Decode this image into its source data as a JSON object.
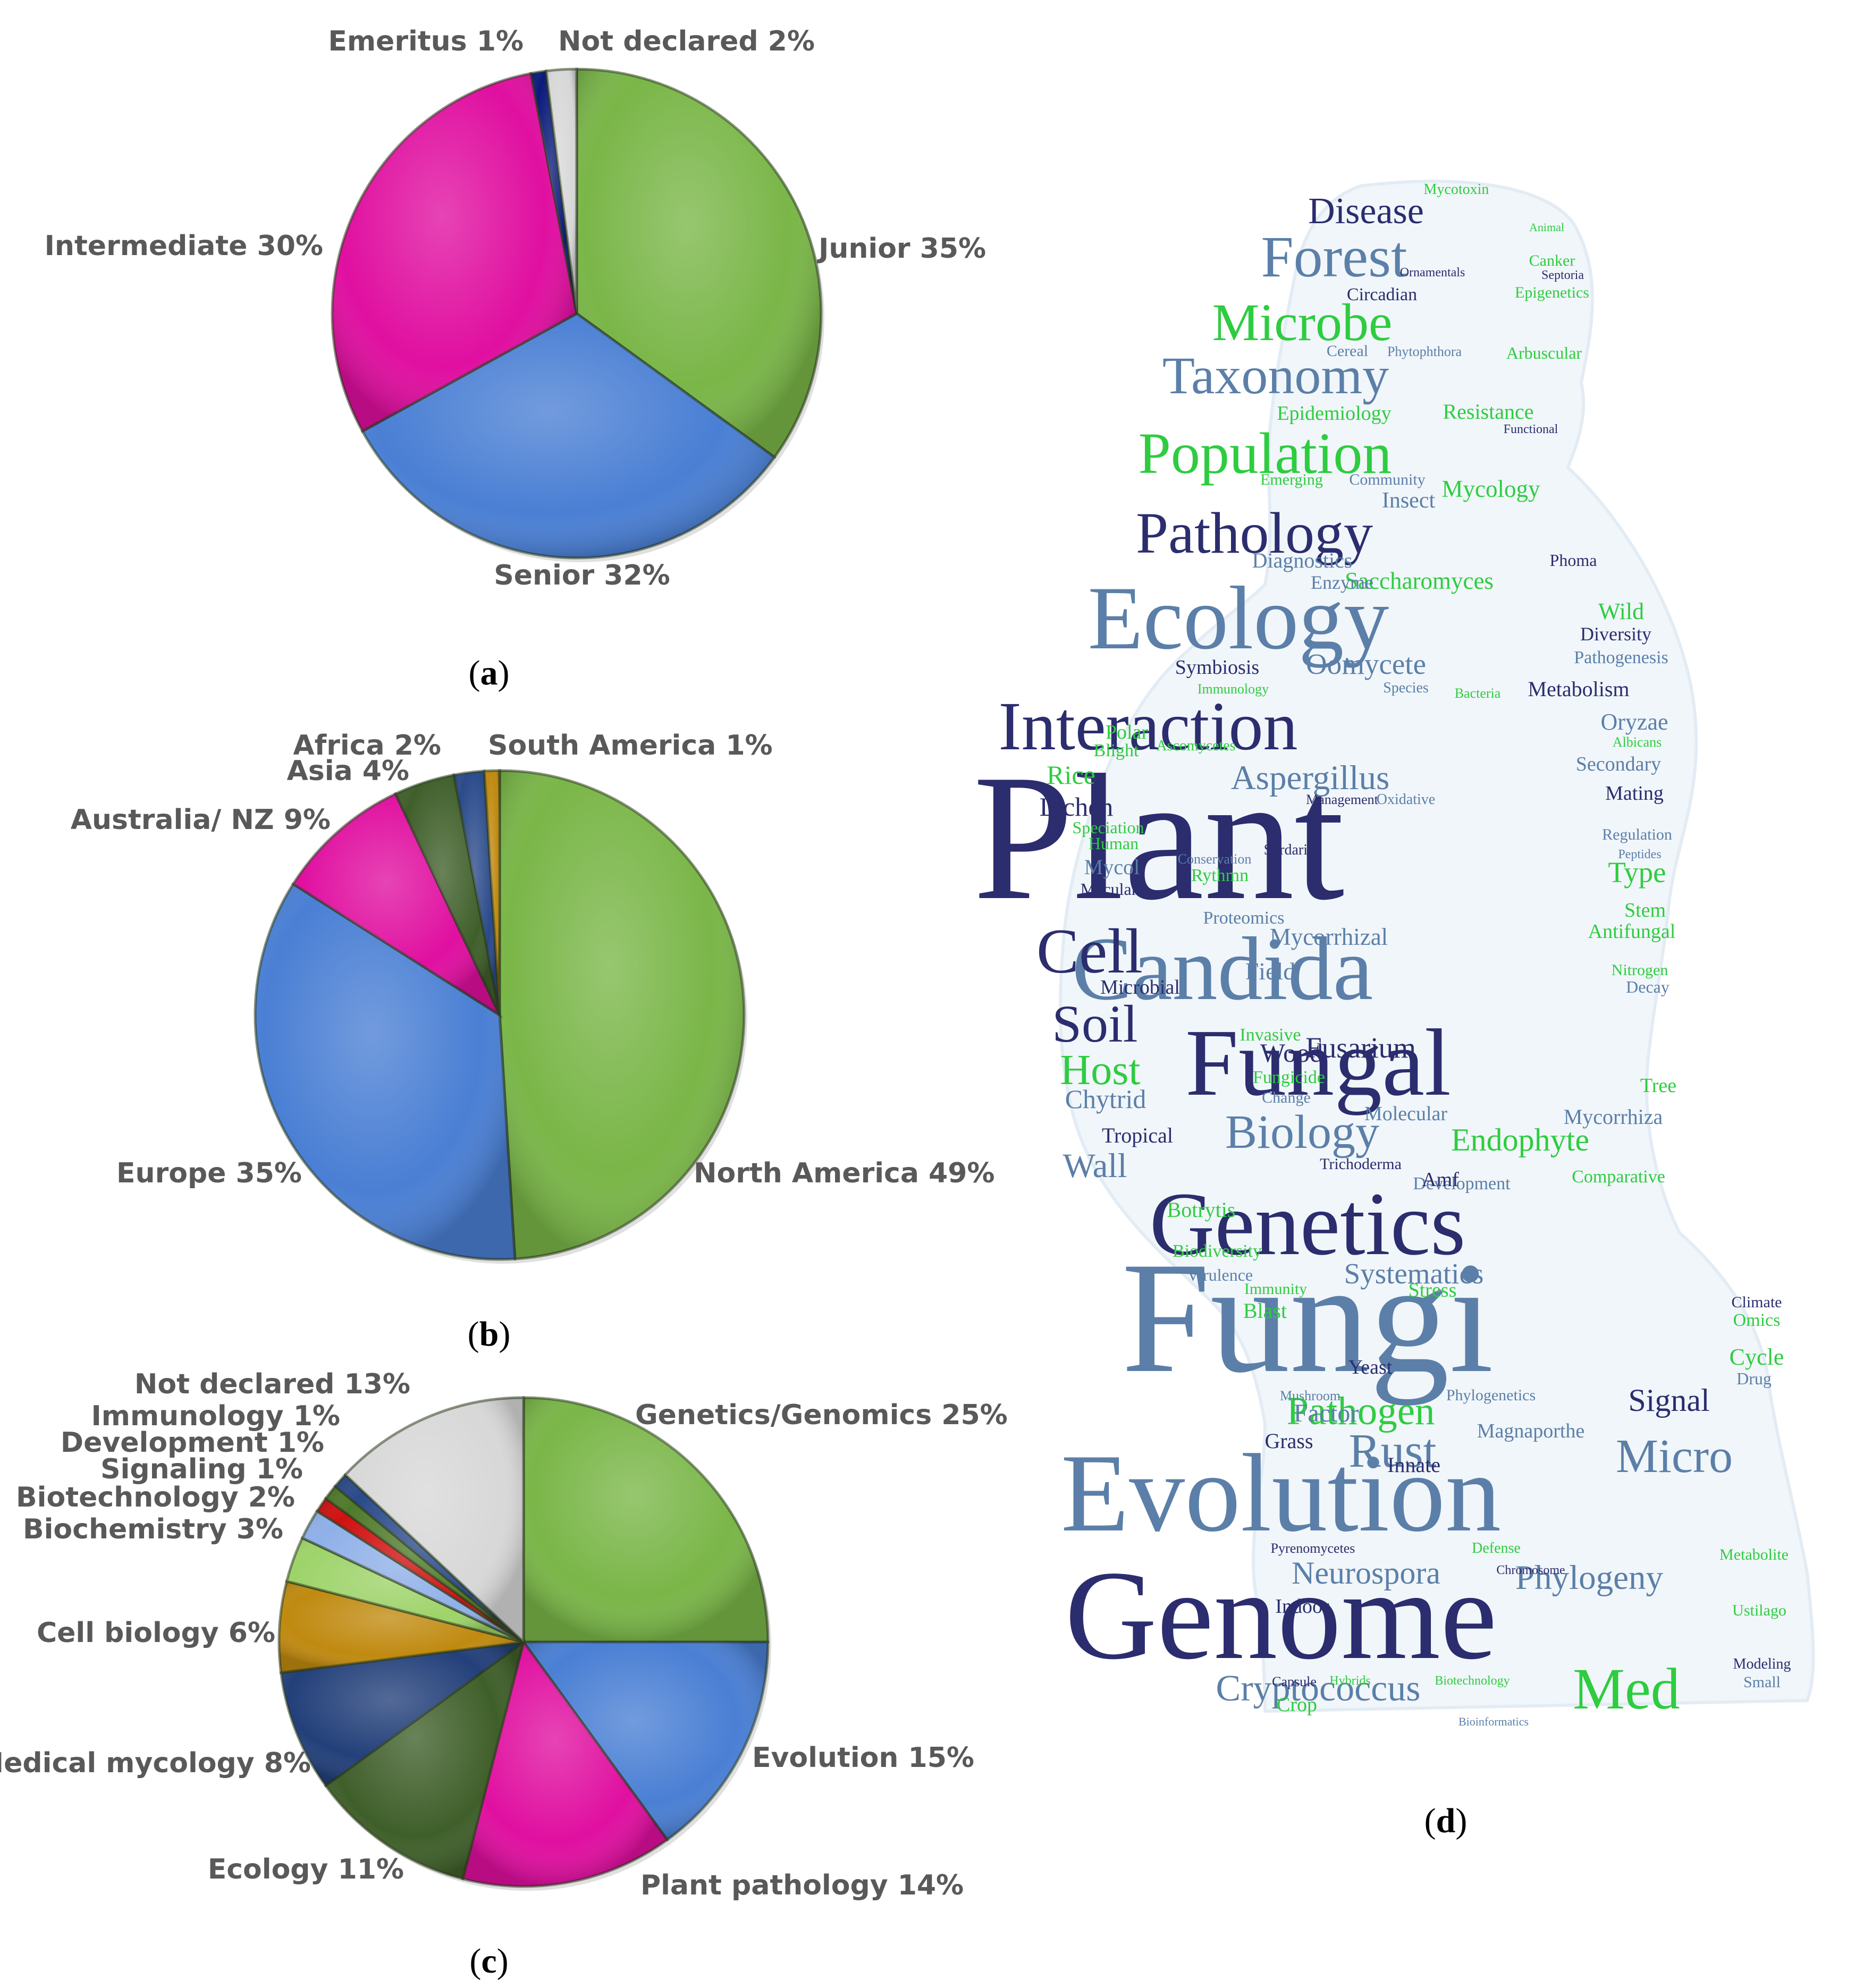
{
  "panels": {
    "a": "a",
    "b": "b",
    "c": "c",
    "d": "d"
  },
  "chart_data": [
    {
      "id": "a",
      "type": "pie",
      "slices": [
        {
          "label": "Junior 35%",
          "value": 35,
          "color": "#7ab648"
        },
        {
          "label": "Senior 32%",
          "value": 32,
          "color": "#4a7fd4"
        },
        {
          "label": "Intermediate 30%",
          "value": 30,
          "color": "#e00fa0"
        },
        {
          "label": "Emeritus 1%",
          "value": 1,
          "color": "#0a1a7a"
        },
        {
          "label": "Not declared 2%",
          "value": 2,
          "color": "#d8d8d8"
        }
      ]
    },
    {
      "id": "b",
      "type": "pie",
      "slices": [
        {
          "label": "North America 49%",
          "value": 49,
          "color": "#7ab648"
        },
        {
          "label": "Europe 35%",
          "value": 35,
          "color": "#4a7fd4"
        },
        {
          "label": "Australia/ NZ 9%",
          "value": 9,
          "color": "#e00fa0"
        },
        {
          "label": "Asia 4%",
          "value": 4,
          "color": "#3f5f2a"
        },
        {
          "label": "Africa 2%",
          "value": 2,
          "color": "#2a4a8a"
        },
        {
          "label": "South America 1%",
          "value": 1,
          "color": "#c08a10"
        }
      ]
    },
    {
      "id": "c",
      "type": "pie",
      "slices": [
        {
          "label": "Genetics/Genomics 25%",
          "value": 25,
          "color": "#7ab648"
        },
        {
          "label": "Evolution 15%",
          "value": 15,
          "color": "#4a7fd4"
        },
        {
          "label": "Plant pathology 14%",
          "value": 14,
          "color": "#e00fa0"
        },
        {
          "label": "Ecology 11%",
          "value": 11,
          "color": "#3f5f2a"
        },
        {
          "label": "Medical mycology 8%",
          "value": 8,
          "color": "#23407a"
        },
        {
          "label": "Cell biology 6%",
          "value": 6,
          "color": "#c08a10"
        },
        {
          "label": "Biochemistry 3%",
          "value": 3,
          "color": "#9ed36a"
        },
        {
          "label": "Biotechnology 2%",
          "value": 2,
          "color": "#8fb0e8"
        },
        {
          "label": "Signaling 1%",
          "value": 1,
          "color": "#d01010"
        },
        {
          "label": "Development 1%",
          "value": 1,
          "color": "#4f7a2a"
        },
        {
          "label": "Immunology 1%",
          "value": 1,
          "color": "#2a4a8a"
        },
        {
          "label": "Not declared 13%",
          "value": 13,
          "color": "#d8d8d8"
        }
      ]
    }
  ],
  "word_cloud": {
    "colors": {
      "dark": "#2b2d6e",
      "mid": "#5b7fa8",
      "green": "#2ecc40"
    },
    "words": [
      "Plant",
      "Fungi",
      "Genome",
      "Evolution",
      "Fungal",
      "Candida",
      "Genetics",
      "Ecology",
      "Interaction",
      "Pathology",
      "Population",
      "Microbe",
      "Taxonomy",
      "Forest",
      "Disease",
      "Cell",
      "Soil",
      "Biology",
      "Rust",
      "Micro",
      "Cryptococcus",
      "Med",
      "Pathogen",
      "Neurospora",
      "Phylogeny",
      "Aspergillus",
      "Oomycete",
      "Host",
      "Fusarium",
      "Systematics",
      "Endophyte",
      "Signal",
      "Saccharomyces",
      "Mycorrhizal",
      "Wall",
      "Chytrid",
      "Lichen",
      "Rice",
      "Mycology",
      "Resistance",
      "Epidemiology",
      "Mycotoxin",
      "Circadian",
      "Arbuscular",
      "Insect",
      "Diagnostics",
      "Enzyme",
      "Wild",
      "Diversity",
      "Symbiosis",
      "Metabolism",
      "Secondary",
      "Mating",
      "Type",
      "Stem",
      "Antifungal",
      "Nitrogen",
      "Tree",
      "Mycorrhiza",
      "Tropical",
      "Botrytis",
      "Biodiversity",
      "Virulence",
      "Blast",
      "Yeast",
      "Factor",
      "Grass",
      "Innate",
      "Indoor",
      "Crop",
      "Metabolite",
      "Ustilago",
      "Cycle",
      "Omics",
      "Drug",
      "Magnaporthe",
      "Stress",
      "Immunity",
      "Comparative",
      "Development",
      "Microbial",
      "Field",
      "Proteomics",
      "Invasive",
      "Wood",
      "Fungicide",
      "Molecular",
      "Pathogenesis",
      "Oryzae",
      "Polar",
      "Blight",
      "Speciation",
      "Human",
      "Mycol",
      "Maculans",
      "Rythmn",
      "Amf",
      "Trichoderma",
      "Change",
      "Epigenetics",
      "Canker",
      "Phoma",
      "Regulation",
      "Emerging",
      "Community",
      "Immunology",
      "Species",
      "Bacteria",
      "Capsule",
      "Bioinformatics",
      "Hybrids",
      "Biotechnology",
      "Defense",
      "Chromosome",
      "Pyrenomycetes",
      "Phylogenetics",
      "Mushroom",
      "Cereal",
      "Phytophthora",
      "Functional",
      "Ornamentals",
      "Septoria",
      "Animal",
      "Albicans",
      "Peptides",
      "Sordaria",
      "Management",
      "Oxidative",
      "Conservation",
      "Ascomycetes",
      "Decay",
      "Climate",
      "Small",
      "Modeling"
    ]
  }
}
